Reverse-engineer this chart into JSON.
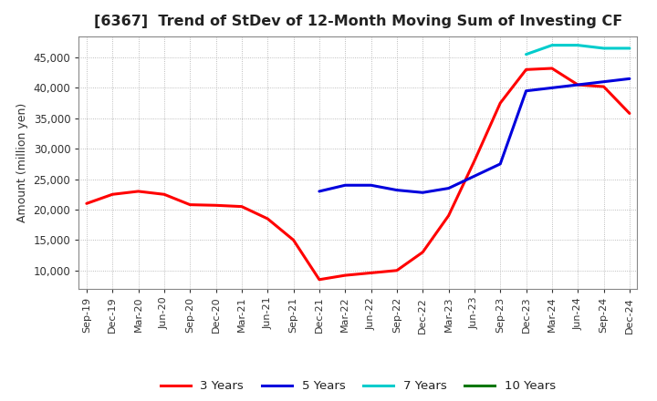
{
  "title": "[6367]  Trend of StDev of 12-Month Moving Sum of Investing CF",
  "ylabel": "Amount (million yen)",
  "ylim": [
    7000,
    48500
  ],
  "yticks": [
    10000,
    15000,
    20000,
    25000,
    30000,
    35000,
    40000,
    45000
  ],
  "background_color": "#ffffff",
  "grid_color": "#aaaaaa",
  "series": {
    "3 Years": {
      "color": "#ff0000",
      "data": [
        [
          "Sep-19",
          21000
        ],
        [
          "Dec-19",
          22500
        ],
        [
          "Mar-20",
          23000
        ],
        [
          "Jun-20",
          22500
        ],
        [
          "Sep-20",
          20800
        ],
        [
          "Dec-20",
          20700
        ],
        [
          "Mar-21",
          20500
        ],
        [
          "Jun-21",
          18500
        ],
        [
          "Sep-21",
          15000
        ],
        [
          "Dec-21",
          8500
        ],
        [
          "Mar-22",
          9200
        ],
        [
          "Jun-22",
          9600
        ],
        [
          "Sep-22",
          10000
        ],
        [
          "Dec-22",
          13000
        ],
        [
          "Mar-23",
          19000
        ],
        [
          "Jun-23",
          28000
        ],
        [
          "Sep-23",
          37500
        ],
        [
          "Dec-23",
          43000
        ],
        [
          "Mar-24",
          43200
        ],
        [
          "Jun-24",
          40500
        ],
        [
          "Sep-24",
          40200
        ],
        [
          "Dec-24",
          35800
        ]
      ]
    },
    "5 Years": {
      "color": "#0000dd",
      "data": [
        [
          "Sep-19",
          null
        ],
        [
          "Dec-19",
          null
        ],
        [
          "Mar-20",
          null
        ],
        [
          "Jun-20",
          null
        ],
        [
          "Sep-20",
          null
        ],
        [
          "Dec-20",
          null
        ],
        [
          "Mar-21",
          null
        ],
        [
          "Jun-21",
          null
        ],
        [
          "Sep-21",
          null
        ],
        [
          "Dec-21",
          23000
        ],
        [
          "Mar-22",
          24000
        ],
        [
          "Jun-22",
          24000
        ],
        [
          "Sep-22",
          23200
        ],
        [
          "Dec-22",
          22800
        ],
        [
          "Mar-23",
          23500
        ],
        [
          "Jun-23",
          25500
        ],
        [
          "Sep-23",
          27500
        ],
        [
          "Dec-23",
          39500
        ],
        [
          "Mar-24",
          40000
        ],
        [
          "Jun-24",
          40500
        ],
        [
          "Sep-24",
          41000
        ],
        [
          "Dec-24",
          41500
        ]
      ]
    },
    "7 Years": {
      "color": "#00cccc",
      "data": [
        [
          "Sep-19",
          null
        ],
        [
          "Dec-19",
          null
        ],
        [
          "Mar-20",
          null
        ],
        [
          "Jun-20",
          null
        ],
        [
          "Sep-20",
          null
        ],
        [
          "Dec-20",
          null
        ],
        [
          "Mar-21",
          null
        ],
        [
          "Jun-21",
          null
        ],
        [
          "Sep-21",
          null
        ],
        [
          "Dec-21",
          null
        ],
        [
          "Mar-22",
          null
        ],
        [
          "Jun-22",
          null
        ],
        [
          "Sep-22",
          null
        ],
        [
          "Dec-22",
          null
        ],
        [
          "Mar-23",
          null
        ],
        [
          "Jun-23",
          null
        ],
        [
          "Sep-23",
          null
        ],
        [
          "Dec-23",
          45500
        ],
        [
          "Mar-24",
          47000
        ],
        [
          "Jun-24",
          47000
        ],
        [
          "Sep-24",
          46500
        ],
        [
          "Dec-24",
          46500
        ]
      ]
    },
    "10 Years": {
      "color": "#007700",
      "data": [
        [
          "Sep-19",
          null
        ],
        [
          "Dec-19",
          null
        ],
        [
          "Mar-20",
          null
        ],
        [
          "Jun-20",
          null
        ],
        [
          "Sep-20",
          null
        ],
        [
          "Dec-20",
          null
        ],
        [
          "Mar-21",
          null
        ],
        [
          "Jun-21",
          null
        ],
        [
          "Sep-21",
          null
        ],
        [
          "Dec-21",
          null
        ],
        [
          "Mar-22",
          null
        ],
        [
          "Jun-22",
          null
        ],
        [
          "Sep-22",
          null
        ],
        [
          "Dec-22",
          null
        ],
        [
          "Mar-23",
          null
        ],
        [
          "Jun-23",
          null
        ],
        [
          "Sep-23",
          null
        ],
        [
          "Dec-23",
          null
        ],
        [
          "Mar-24",
          null
        ],
        [
          "Jun-24",
          null
        ],
        [
          "Sep-24",
          null
        ],
        [
          "Dec-24",
          null
        ]
      ]
    }
  },
  "x_labels": [
    "Sep-19",
    "Dec-19",
    "Mar-20",
    "Jun-20",
    "Sep-20",
    "Dec-20",
    "Mar-21",
    "Jun-21",
    "Sep-21",
    "Dec-21",
    "Mar-22",
    "Jun-22",
    "Sep-22",
    "Dec-22",
    "Mar-23",
    "Jun-23",
    "Sep-23",
    "Dec-23",
    "Mar-24",
    "Jun-24",
    "Sep-24",
    "Dec-24"
  ],
  "legend_entries": [
    "3 Years",
    "5 Years",
    "7 Years",
    "10 Years"
  ],
  "legend_colors": [
    "#ff0000",
    "#0000dd",
    "#00cccc",
    "#007700"
  ]
}
